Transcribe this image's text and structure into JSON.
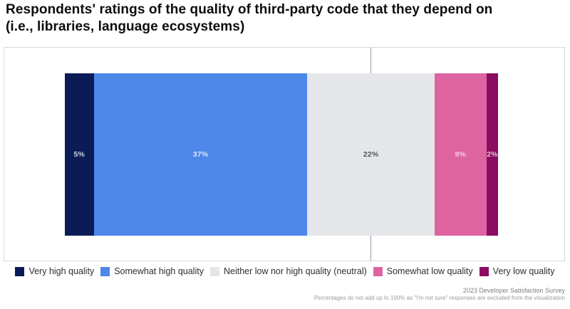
{
  "header": {
    "title_line1": "Respondents' ratings of the quality of third-party code that they depend on",
    "title_line2": "(i.e., libraries, language ecosystems)"
  },
  "chart_data": {
    "type": "bar",
    "subtype": "horizontal-stacked",
    "title": "Respondents' ratings of the quality of third-party code that they depend on (i.e., libraries, language ecosystems)",
    "categories": [
      "Very high quality",
      "Somewhat high quality",
      "Neither low nor high quality (neutral)",
      "Somewhat low quality",
      "Very low quality"
    ],
    "values": [
      5,
      37,
      22,
      9,
      2
    ],
    "value_labels": [
      "5%",
      "37%",
      "22%",
      "9%",
      "2%"
    ],
    "colors": [
      "#0a1b55",
      "#4d87ea",
      "#e4e6e9",
      "#de63a1",
      "#8b0c60"
    ],
    "label_colors": [
      "#ccd2e1",
      "#dbe6fa",
      "#54575d",
      "#f3cbe0",
      "#e0cbdc"
    ],
    "xlabel": "",
    "ylabel": "",
    "grid": "single-vertical-gridline",
    "legend_position": "bottom"
  },
  "legend": {
    "items": [
      {
        "label": "Very high quality",
        "color": "#0a1b55"
      },
      {
        "label": "Somewhat high quality",
        "color": "#4d87ea"
      },
      {
        "label": "Neither low nor high quality (neutral)",
        "color": "#e4e6e9"
      },
      {
        "label": "Somewhat low quality",
        "color": "#de63a1"
      },
      {
        "label": "Very low quality",
        "color": "#8b0c60"
      }
    ]
  },
  "footer": {
    "source": "2023 Developer Satisfaction Survey",
    "note": "Percentages do not add up to 100% as \"I'm not sure\" responses are excluded from the visualization"
  }
}
